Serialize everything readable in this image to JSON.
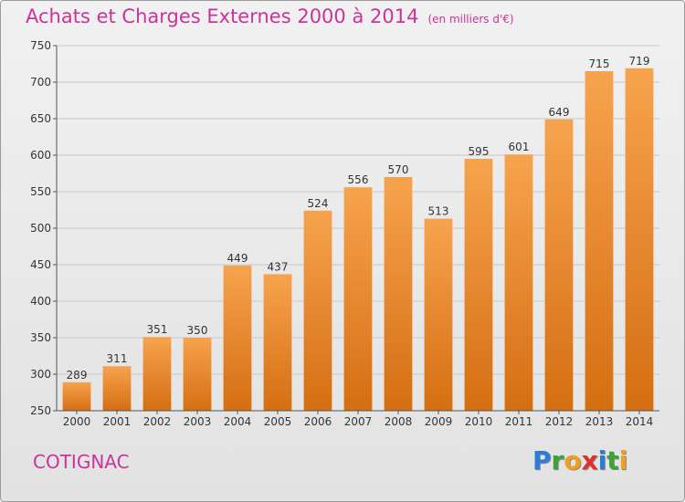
{
  "title": "Achats et Charges Externes 2000 à 2014",
  "unit": "(en milliers d'€)",
  "commune": "COTIGNAC",
  "logo": {
    "letters": [
      {
        "ch": "P",
        "color": "#2a7fd4"
      },
      {
        "ch": "r",
        "color": "#3aa33a"
      },
      {
        "ch": "o",
        "color": "#f0a020"
      },
      {
        "ch": "x",
        "color": "#e03030"
      },
      {
        "ch": "i",
        "color": "#2a7fd4"
      },
      {
        "ch": "t",
        "color": "#3aa33a"
      },
      {
        "ch": "i",
        "color": "#f0a020"
      }
    ]
  },
  "colors": {
    "title": "#cc3399",
    "bar_light": "#f7a34e",
    "bar_dark": "#d56e12",
    "grid": "#c8c8c8",
    "axis": "#555555"
  },
  "chart_data": {
    "type": "bar",
    "title": "Achats et Charges Externes 2000 à 2014",
    "categories": [
      "2000",
      "2001",
      "2002",
      "2003",
      "2004",
      "2005",
      "2006",
      "2007",
      "2008",
      "2009",
      "2010",
      "2011",
      "2012",
      "2013",
      "2014"
    ],
    "values": [
      289,
      311,
      351,
      350,
      449,
      437,
      524,
      556,
      570,
      513,
      595,
      601,
      649,
      715,
      719
    ],
    "ylim": [
      250,
      750
    ],
    "yticks": [
      250,
      300,
      350,
      400,
      450,
      500,
      550,
      600,
      650,
      700,
      750
    ],
    "grid": true,
    "xlabel": "",
    "ylabel": ""
  }
}
